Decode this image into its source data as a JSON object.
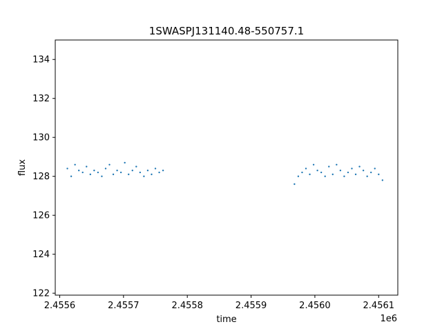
{
  "chart_data": {
    "type": "scatter",
    "title": "1SWASPJ131140.48-550757.1",
    "xlabel": "time",
    "ylabel": "flux",
    "x_offset_label": "1e6",
    "xlim": [
      2455593,
      2456130
    ],
    "ylim": [
      121.9,
      135.0
    ],
    "x_ticks": [
      2455600,
      2455700,
      2455800,
      2455900,
      2456000,
      2456100
    ],
    "x_tick_labels": [
      "2.4556",
      "2.4557",
      "2.4558",
      "2.4559",
      "2.4560",
      "2.4561"
    ],
    "y_ticks": [
      122,
      124,
      126,
      128,
      130,
      132,
      134
    ],
    "y_tick_labels": [
      "122",
      "124",
      "126",
      "128",
      "130",
      "132",
      "134"
    ],
    "grid": false,
    "point_color": "#1f77b4",
    "series": [
      {
        "x": [
          2455612,
          2455618,
          2455624,
          2455630,
          2455636,
          2455642,
          2455648,
          2455654,
          2455660,
          2455666,
          2455672,
          2455678,
          2455684,
          2455690,
          2455696,
          2455702,
          2455708,
          2455714,
          2455720,
          2455726,
          2455732,
          2455738,
          2455744,
          2455750,
          2455756,
          2455762,
          2455968,
          2455974,
          2455980,
          2455986,
          2455992,
          2455998,
          2456004,
          2456010,
          2456016,
          2456022,
          2456028,
          2456034,
          2456040,
          2456046,
          2456052,
          2456058,
          2456064,
          2456070,
          2456076,
          2456082,
          2456088,
          2456094,
          2456100,
          2456106
        ],
        "y": [
          128.4,
          128.0,
          128.6,
          128.3,
          128.2,
          128.5,
          128.1,
          128.3,
          128.2,
          128.0,
          128.4,
          128.6,
          128.1,
          128.3,
          128.2,
          128.7,
          128.1,
          128.3,
          128.5,
          128.2,
          128.0,
          128.3,
          128.1,
          128.4,
          128.2,
          128.3,
          127.6,
          128.0,
          128.2,
          128.4,
          128.1,
          128.6,
          128.3,
          128.2,
          128.0,
          128.5,
          128.1,
          128.6,
          128.3,
          128.0,
          128.2,
          128.4,
          128.1,
          128.5,
          128.3,
          128.0,
          128.2,
          128.4,
          128.1,
          127.8
        ]
      }
    ]
  }
}
